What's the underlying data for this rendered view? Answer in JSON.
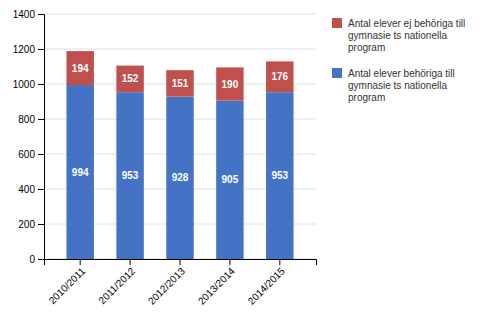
{
  "chart_data": {
    "type": "bar",
    "stacked": true,
    "categories": [
      "2010/2011",
      "2011/2012",
      "2012/2013",
      "2013/2014",
      "2014/2015"
    ],
    "series": [
      {
        "name": "Antal elever behöriga till\ngymnasie ts nationella\nprogram",
        "color": "#4472C4",
        "values": [
          994,
          953,
          928,
          905,
          953
        ]
      },
      {
        "name": "Antal elever ej behöriga till\ngymnasie ts nationella\nprogram",
        "color": "#C0504D",
        "values": [
          194,
          152,
          151,
          190,
          176
        ]
      }
    ],
    "ylim": [
      0,
      1400
    ],
    "yticks": [
      0,
      200,
      400,
      600,
      800,
      1000,
      1200,
      1400
    ],
    "grid": true,
    "data_labels": true,
    "legend": "right"
  }
}
